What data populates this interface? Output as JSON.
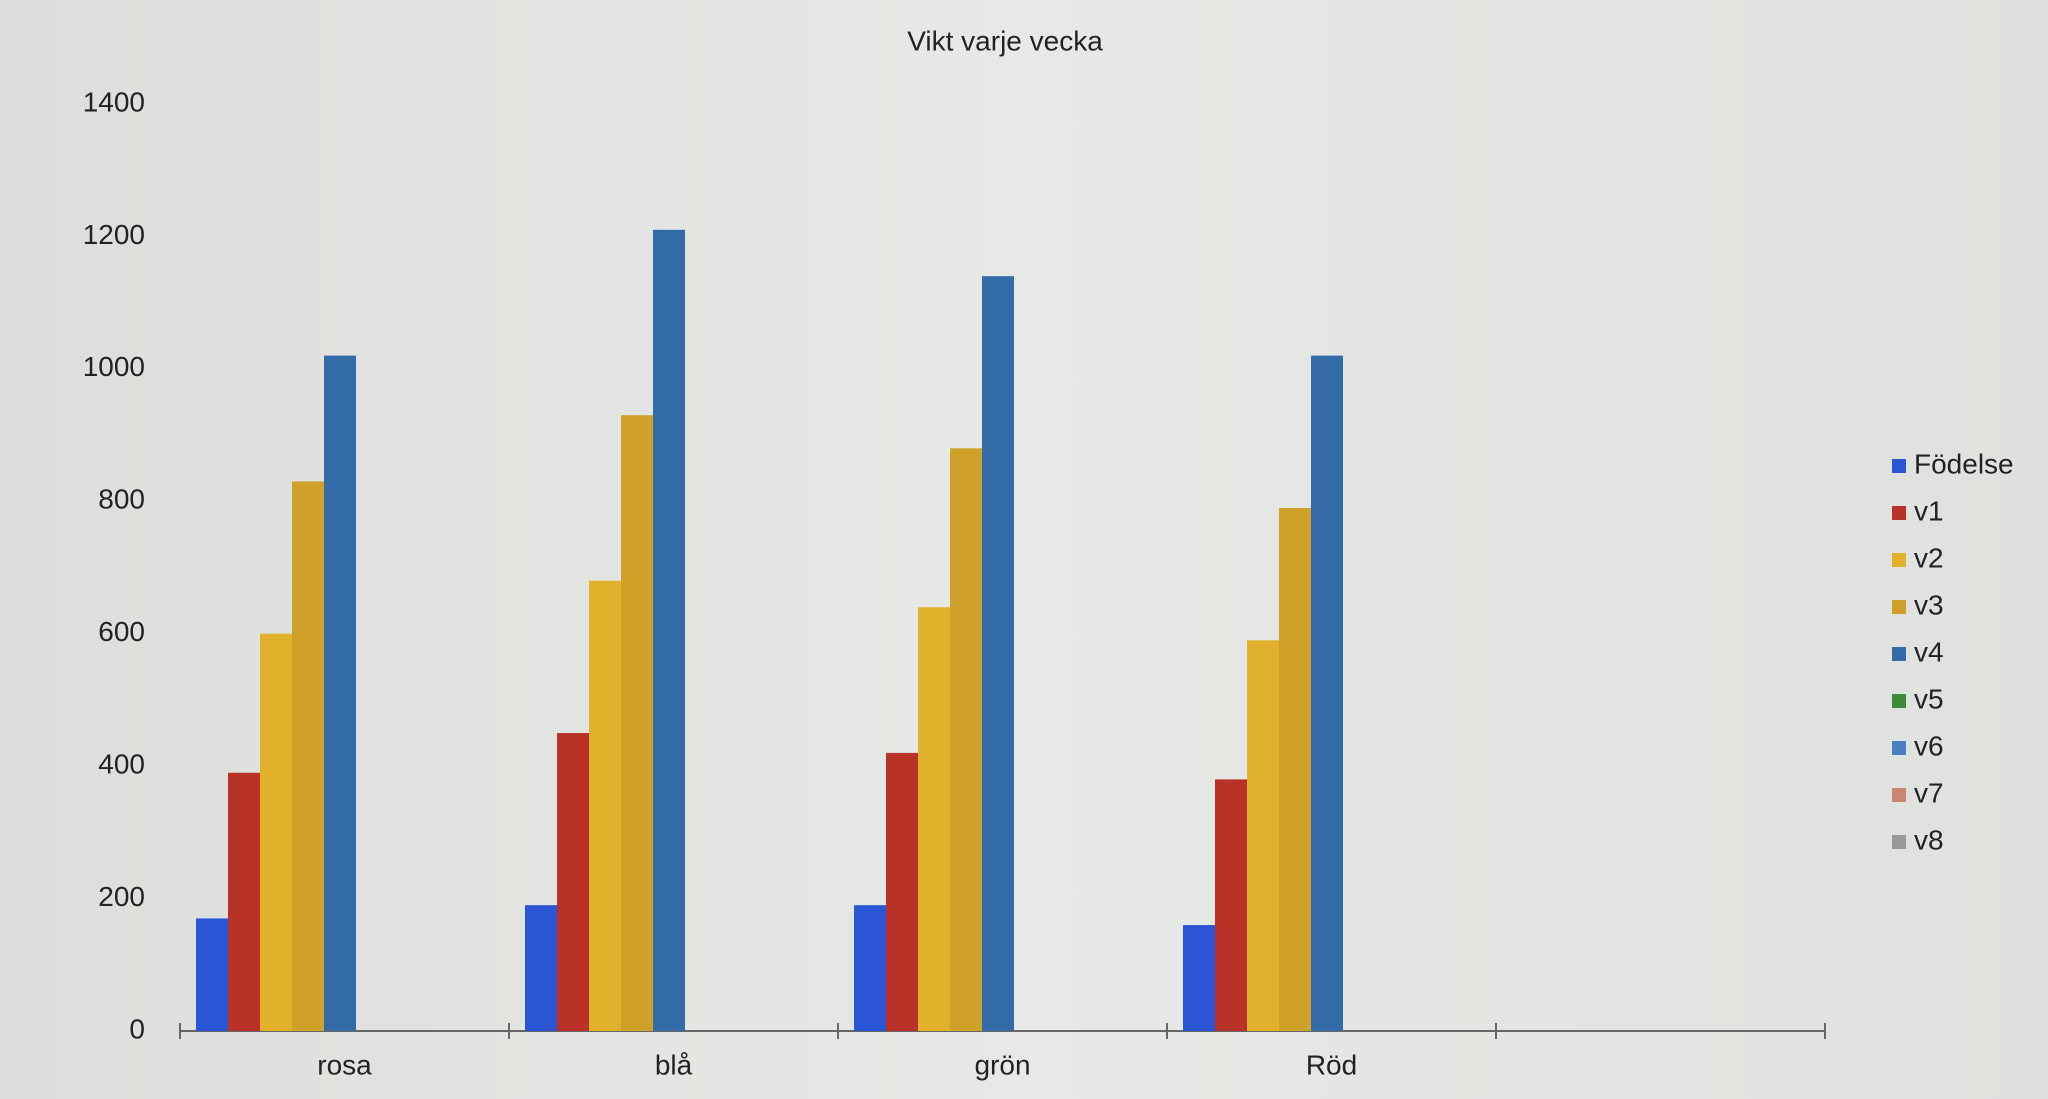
{
  "chart_data": {
    "type": "bar",
    "title": "Vikt varje vecka",
    "categories": [
      "rosa",
      "blå",
      "grön",
      "Röd",
      null
    ],
    "series": [
      {
        "name": "Födelse",
        "color": "#2a56d6",
        "values": [
          170,
          190,
          190,
          160,
          null
        ]
      },
      {
        "name": "v1",
        "color": "#b83227",
        "values": [
          390,
          450,
          420,
          380,
          null
        ]
      },
      {
        "name": "v2",
        "color": "#e2b12c",
        "values": [
          600,
          680,
          640,
          590,
          null
        ]
      },
      {
        "name": "v3",
        "color": "#cfa128",
        "values": [
          830,
          930,
          880,
          790,
          null
        ]
      },
      {
        "name": "v4",
        "color": "#336aa8",
        "values": [
          1020,
          1210,
          1140,
          1020,
          null
        ]
      },
      {
        "name": "v5",
        "color": "#3e8a3c",
        "values": [
          null,
          null,
          null,
          null,
          null
        ]
      },
      {
        "name": "v6",
        "color": "#4a7fc2",
        "values": [
          null,
          null,
          null,
          null,
          null
        ]
      },
      {
        "name": "v7",
        "color": "#c98670",
        "values": [
          null,
          null,
          null,
          null,
          null
        ]
      },
      {
        "name": "v8",
        "color": "#999999",
        "values": [
          null,
          null,
          null,
          null,
          null
        ]
      }
    ],
    "ylim": [
      0,
      1400
    ],
    "yticks": [
      0,
      200,
      400,
      600,
      800,
      1000,
      1200,
      1400
    ],
    "grid": false,
    "legend": "right"
  }
}
